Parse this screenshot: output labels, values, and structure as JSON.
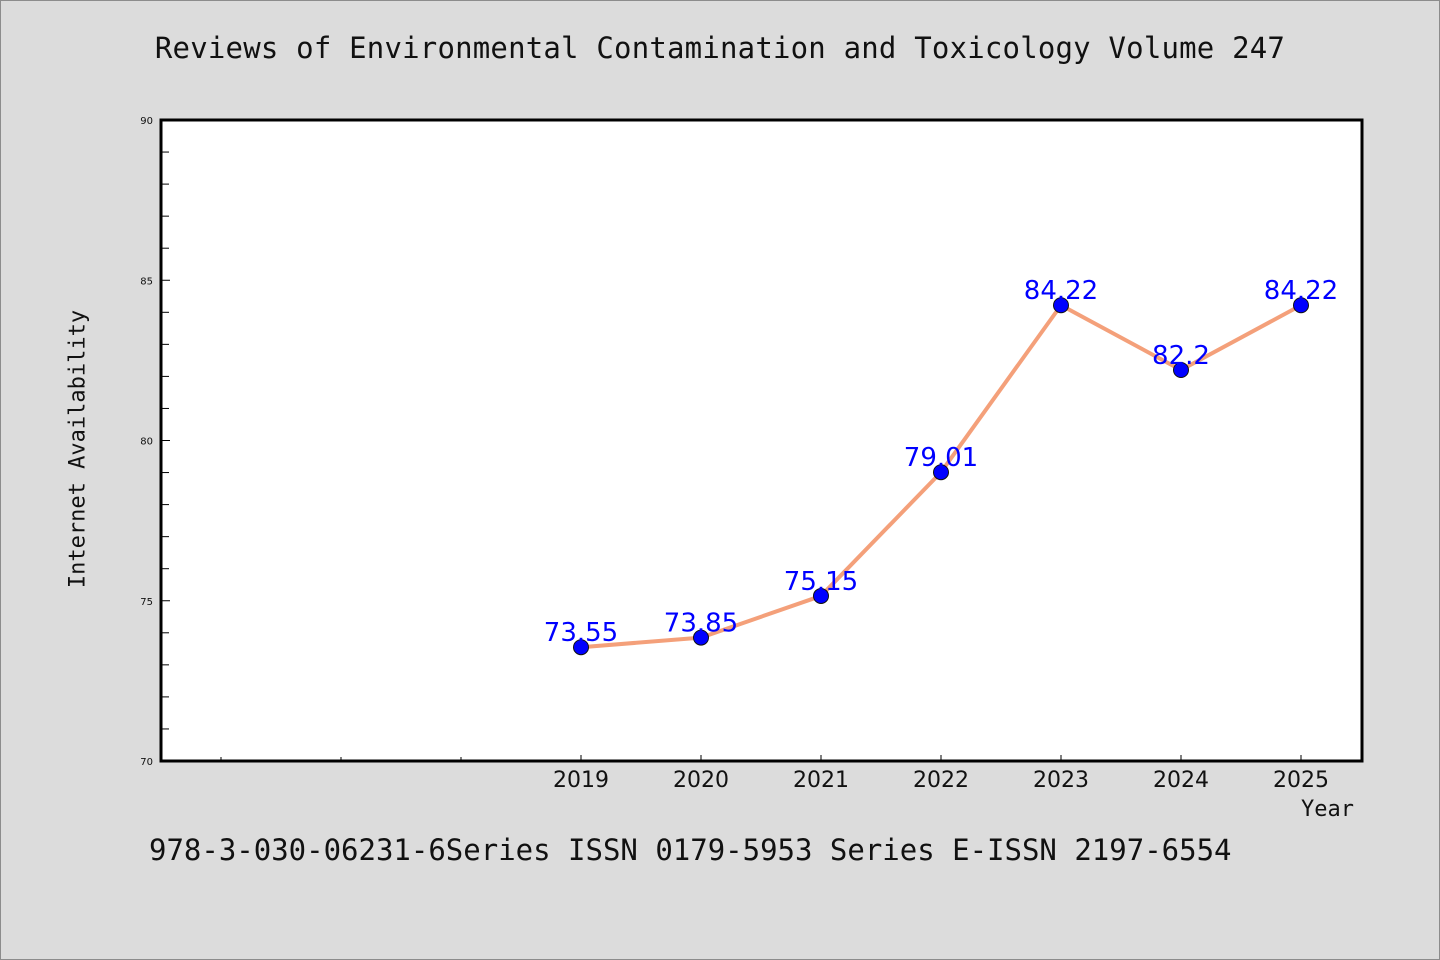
{
  "chart_data": {
    "type": "line",
    "title": "Reviews of Environmental Contamination and Toxicology Volume 247",
    "xlabel": "Year",
    "ylabel": "Internet Availability",
    "footer": "978-3-030-06231-6Series ISSN 0179-5953 Series E-ISSN 2197-6554",
    "x": [
      "2019",
      "2020",
      "2021",
      "2022",
      "2023",
      "2024",
      "2025"
    ],
    "series": [
      {
        "values": [
          73.55,
          73.85,
          75.15,
          79.01,
          84.22,
          82.2,
          84.22
        ],
        "labels": [
          "73.55",
          "73.85",
          "75.15",
          "79.01",
          "84.22",
          "82.2",
          "84.22"
        ]
      }
    ],
    "ylim": [
      70,
      90
    ],
    "yticks": [
      "70",
      "75",
      "80",
      "85",
      "90"
    ],
    "grid": false,
    "colors": {
      "line": "#f4a07a",
      "marker": "#0000ff",
      "label": "#0000ff",
      "background": "#dcdcdc",
      "plot_area": "#ffffff"
    }
  }
}
